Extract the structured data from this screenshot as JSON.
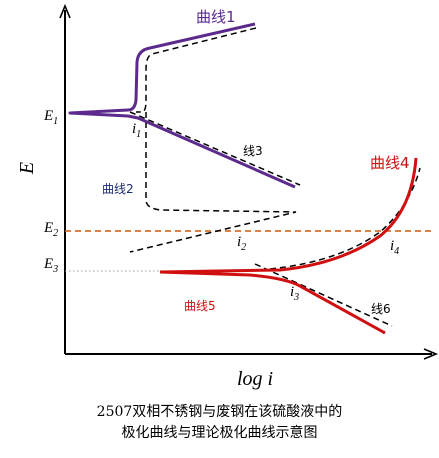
{
  "axes": {
    "y_label": "E",
    "x_label": "log i"
  },
  "potential_labels": {
    "e1": "E",
    "e1_sub": "1",
    "e2": "E",
    "e2_sub": "2",
    "e3": "E",
    "e3_sub": "3"
  },
  "current_labels": {
    "i1": "i",
    "i1_sub": "1",
    "i2": "i",
    "i2_sub": "2",
    "i3": "i",
    "i3_sub": "3",
    "i4": "i",
    "i4_sub": "4"
  },
  "curve_labels": {
    "curve1": "曲线1",
    "curve2": "曲线2",
    "curve3": "线3",
    "curve4": "曲线4",
    "curve5": "曲线5",
    "curve6": "线6"
  },
  "caption": {
    "line1": "2507双相不锈钢与废钢在该硫酸液中的",
    "line2": "极化曲线与理论极化曲线示意图"
  },
  "colors": {
    "curve1": "#5b2a8c",
    "curve4": "#d01010",
    "e2_line": "#d05a10",
    "dashed": "#000000"
  }
}
